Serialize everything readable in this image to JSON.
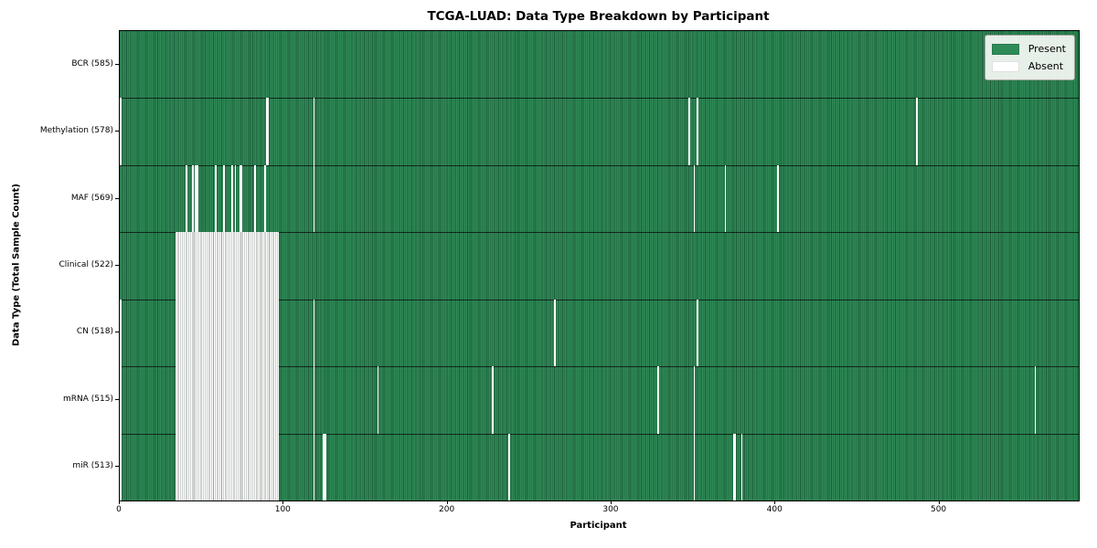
{
  "title": "TCGA-LUAD: Data Type Breakdown by Participant",
  "axes": {
    "x_label": "Participant",
    "y_label": "Data Type (Total Sample Count)"
  },
  "legend": {
    "items": [
      {
        "label": "Present",
        "color": "#2e8b57"
      },
      {
        "label": "Absent",
        "color": "#ffffff"
      }
    ]
  },
  "chart_data": {
    "type": "heatmap",
    "title": "TCGA-LUAD: Data Type Breakdown by Participant",
    "xlabel": "Participant",
    "ylabel": "Data Type (Total Sample Count)",
    "x_ticks": [
      0,
      100,
      200,
      300,
      400,
      500
    ],
    "x_range": [
      0,
      585
    ],
    "n_participants": 585,
    "legend_position": "upper right",
    "colors": {
      "present": "#2e8b57",
      "absent": "#ffffff"
    },
    "rows": [
      {
        "name": "BCR",
        "label": "BCR (585)",
        "count": 585,
        "absent": [],
        "absent_ranges": []
      },
      {
        "name": "Methylation",
        "label": "Methylation (578)",
        "count": 578,
        "absent": [
          0,
          89,
          90,
          118,
          347,
          352,
          486
        ],
        "absent_ranges": []
      },
      {
        "name": "MAF",
        "label": "MAF (569)",
        "count": 569,
        "absent": [
          40,
          44,
          46,
          47,
          58,
          63,
          68,
          70,
          73,
          74,
          82,
          88,
          118,
          350,
          369,
          401
        ],
        "absent_ranges": []
      },
      {
        "name": "Clinical",
        "label": "Clinical (522)",
        "count": 522,
        "absent": [],
        "absent_ranges": [
          [
            34,
            96
          ]
        ]
      },
      {
        "name": "CN",
        "label": "CN (518)",
        "count": 518,
        "absent": [
          0,
          118,
          265,
          352
        ],
        "absent_ranges": [
          [
            34,
            96
          ]
        ]
      },
      {
        "name": "mRNA",
        "label": "mRNA (515)",
        "count": 515,
        "absent": [
          0,
          118,
          157,
          227,
          328,
          350,
          558
        ],
        "absent_ranges": [
          [
            34,
            96
          ]
        ]
      },
      {
        "name": "miR",
        "label": "miR (513)",
        "count": 513,
        "absent": [
          0,
          118,
          124,
          125,
          237,
          350,
          374,
          375,
          379
        ],
        "absent_ranges": [
          [
            34,
            96
          ]
        ]
      }
    ]
  }
}
